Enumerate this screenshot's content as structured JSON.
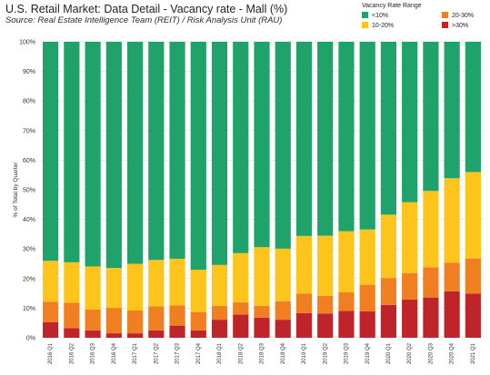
{
  "title": "U.S. Retail Market: Data Detail - Vacancy rate - Mall (%)",
  "subtitle": "Source: Real Estate Intelligence Team (REIT) / Risk Analysis Unit (RAU)",
  "legend": {
    "title": "Vacancy Rate Range",
    "items": [
      {
        "label": "<10%",
        "color": "#1fa36b"
      },
      {
        "label": "20-30%",
        "color": "#f07f22"
      },
      {
        "label": "10-20%",
        "color": "#fdc41c"
      },
      {
        "label": ">30%",
        "color": "#c0242b"
      }
    ]
  },
  "chart_data": {
    "type": "bar",
    "stacked": true,
    "title": "U.S. Retail Market: Data Detail - Vacancy rate - Mall (%)",
    "ylabel": "% of Total by Quarter",
    "xlabel": "",
    "ylim": [
      0,
      100
    ],
    "yticks": [
      "0%",
      "10%",
      "20%",
      "30%",
      "40%",
      "50%",
      "60%",
      "70%",
      "80%",
      "90%",
      "100%"
    ],
    "grid": true,
    "legend_position": "top-right",
    "categories": [
      "2016 Q1",
      "2016 Q2",
      "2016 Q3",
      "2016 Q4",
      "2017 Q1",
      "2017 Q2",
      "2017 Q3",
      "2017 Q4",
      "2018 Q1",
      "2018 Q2",
      "2018 Q3",
      "2018 Q4",
      "2019 Q1",
      "2019 Q2",
      "2019 Q3",
      "2019 Q4",
      "2020 Q1",
      "2020 Q2",
      "2020 Q3",
      "2020 Q4",
      "2021 Q1"
    ],
    "series": [
      {
        "name": ">30%",
        "color": "#c0242b",
        "values": [
          5.3,
          3.3,
          2.5,
          1.5,
          1.5,
          2.5,
          4.1,
          2.5,
          6.1,
          7.8,
          6.8,
          6.1,
          8.3,
          8.2,
          9.1,
          8.9,
          11.1,
          12.9,
          13.6,
          15.7,
          14.9
        ]
      },
      {
        "name": "20-30%",
        "color": "#f07f22",
        "values": [
          6.9,
          8.5,
          7.0,
          8.6,
          7.7,
          8.1,
          6.8,
          6.2,
          4.7,
          4.2,
          4.0,
          6.2,
          6.6,
          5.9,
          6.3,
          9.0,
          9.1,
          8.9,
          10.2,
          9.6,
          11.9
        ]
      },
      {
        "name": "10-20%",
        "color": "#fdc41c",
        "values": [
          13.8,
          13.7,
          14.6,
          13.5,
          15.8,
          15.7,
          15.8,
          14.3,
          13.8,
          16.6,
          19.8,
          17.8,
          19.5,
          20.4,
          20.6,
          18.7,
          21.4,
          24.0,
          25.8,
          28.6,
          29.2
        ]
      },
      {
        "name": "<10%",
        "color": "#1fa36b",
        "values": [
          74.0,
          74.5,
          75.9,
          76.4,
          75.0,
          73.7,
          73.3,
          77.0,
          75.4,
          71.4,
          69.4,
          69.9,
          65.6,
          65.5,
          64.0,
          63.4,
          58.4,
          54.2,
          50.4,
          46.1,
          44.0
        ]
      }
    ]
  }
}
